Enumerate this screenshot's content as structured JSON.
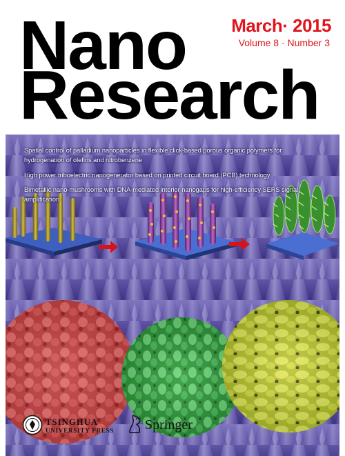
{
  "journal": {
    "title_line1": "Nano",
    "title_line2": "Research"
  },
  "issue": {
    "date": "March· 2015",
    "volume_number": "Volume 8 · Number 3"
  },
  "headlines": [
    "Spatial control of palladium nanoparticles in flexible click-based porous organic polymers for hydrogenation of olefins and nitrobenzene",
    "High power triboelectric nanogenerator based on printed circuit board (PCB) technology",
    "Bimetallic nano-mushrooms with DNA-mediated interior nanogaps for high-efficiency SERS signal amplification"
  ],
  "publishers": {
    "tsinghua_name": "TSINGHUA",
    "tsinghua_sub": "UNIVERSITY PRESS",
    "springer": "Springer"
  },
  "colors": {
    "accent_red": "#e0141c",
    "background_purple": "#6a5fb0",
    "red_micrograph": "#c84a4a",
    "green_micrograph": "#3faa4a",
    "yellow_micrograph": "#c9d444"
  },
  "icons": [
    "tsinghua-seal-icon",
    "springer-horse-icon",
    "arrow-right-icon"
  ]
}
